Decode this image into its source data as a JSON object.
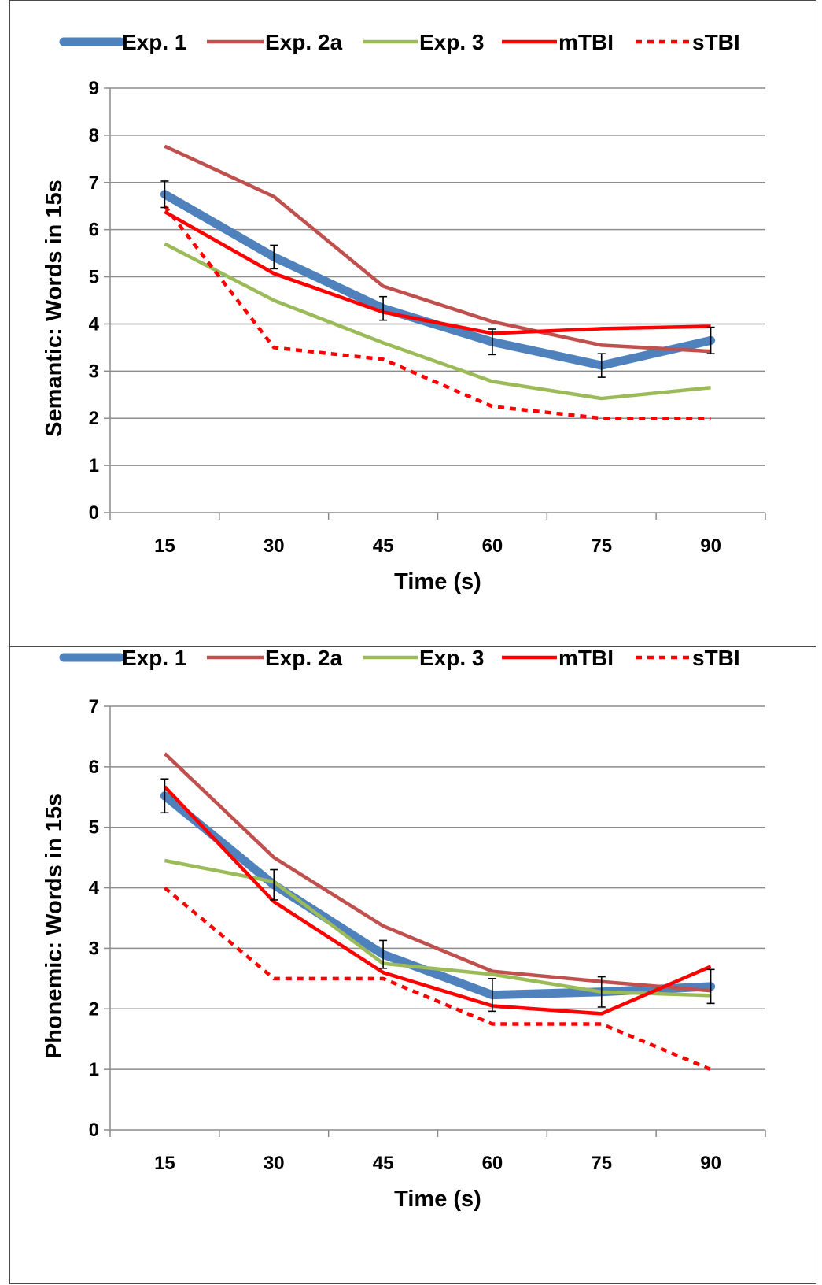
{
  "chart_data": [
    {
      "type": "line",
      "title": "",
      "xlabel": "Time (s)",
      "ylabel": "Semantic: Words in 15s",
      "categories": [
        "15",
        "30",
        "45",
        "60",
        "75",
        "90"
      ],
      "ylim": [
        0,
        9
      ],
      "yticks": [
        "0",
        "1",
        "2",
        "3",
        "4",
        "5",
        "6",
        "7",
        "8",
        "9"
      ],
      "grid": true,
      "legend": "top",
      "series": [
        {
          "name": "Exp. 1",
          "values": [
            6.75,
            5.42,
            4.33,
            3.62,
            3.12,
            3.65
          ],
          "color": "#4f81bd",
          "style": "thick",
          "error": [
            0.28,
            0.25,
            0.25,
            0.27,
            0.25,
            0.28
          ]
        },
        {
          "name": "Exp. 2a",
          "values": [
            7.77,
            6.7,
            4.8,
            4.05,
            3.55,
            3.42
          ],
          "color": "#c0504d",
          "style": "solid"
        },
        {
          "name": "Exp. 3",
          "values": [
            5.7,
            4.5,
            3.6,
            2.78,
            2.42,
            2.65
          ],
          "color": "#9bbb59",
          "style": "solid"
        },
        {
          "name": "mTBI",
          "values": [
            6.38,
            5.07,
            4.25,
            3.8,
            3.9,
            3.95
          ],
          "color": "#ff0000",
          "style": "solid"
        },
        {
          "name": "sTBI",
          "values": [
            6.5,
            3.5,
            3.25,
            2.25,
            2.0,
            2.0
          ],
          "color": "#ff0000",
          "style": "dashed"
        }
      ]
    },
    {
      "type": "line",
      "title": "",
      "xlabel": "Time (s)",
      "ylabel": "Phonemic: Words in 15s",
      "categories": [
        "15",
        "30",
        "45",
        "60",
        "75",
        "90"
      ],
      "ylim": [
        0,
        7
      ],
      "yticks": [
        "0",
        "1",
        "2",
        "3",
        "4",
        "5",
        "6",
        "7"
      ],
      "grid": true,
      "legend": "top",
      "series": [
        {
          "name": "Exp. 1",
          "values": [
            5.52,
            4.05,
            2.9,
            2.23,
            2.28,
            2.37
          ],
          "color": "#4f81bd",
          "style": "thick",
          "error": [
            0.28,
            0.25,
            0.23,
            0.27,
            0.25,
            0.28
          ]
        },
        {
          "name": "Exp. 2a",
          "values": [
            6.22,
            4.5,
            3.37,
            2.62,
            2.45,
            2.3
          ],
          "color": "#c0504d",
          "style": "solid"
        },
        {
          "name": "Exp. 3",
          "values": [
            4.45,
            4.1,
            2.75,
            2.57,
            2.28,
            2.22
          ],
          "color": "#9bbb59",
          "style": "solid"
        },
        {
          "name": "mTBI",
          "values": [
            5.67,
            3.77,
            2.6,
            2.05,
            1.92,
            2.7
          ],
          "color": "#ff0000",
          "style": "solid"
        },
        {
          "name": "sTBI",
          "values": [
            4.0,
            2.5,
            2.5,
            1.75,
            1.75,
            1.0
          ],
          "color": "#ff0000",
          "style": "dashed"
        }
      ]
    }
  ]
}
